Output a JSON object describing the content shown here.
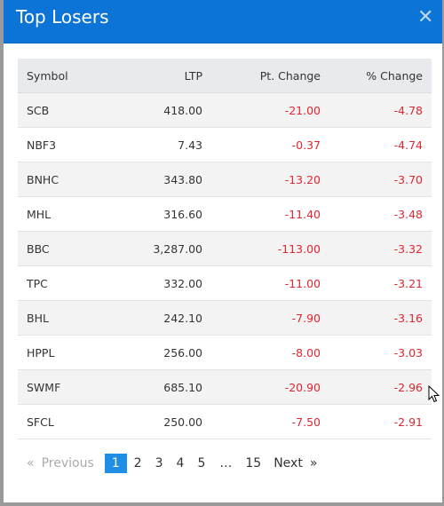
{
  "modal": {
    "title": "Top Losers",
    "close_icon": "close-icon"
  },
  "table": {
    "headers": [
      "Symbol",
      "LTP",
      "Pt. Change",
      "% Change"
    ],
    "rows": [
      {
        "symbol": "SCB",
        "ltp": "418.00",
        "pt_change": "-21.00",
        "pct_change": "-4.78"
      },
      {
        "symbol": "NBF3",
        "ltp": "7.43",
        "pt_change": "-0.37",
        "pct_change": "-4.74"
      },
      {
        "symbol": "BNHC",
        "ltp": "343.80",
        "pt_change": "-13.20",
        "pct_change": "-3.70"
      },
      {
        "symbol": "MHL",
        "ltp": "316.60",
        "pt_change": "-11.40",
        "pct_change": "-3.48"
      },
      {
        "symbol": "BBC",
        "ltp": "3,287.00",
        "pt_change": "-113.00",
        "pct_change": "-3.32"
      },
      {
        "symbol": "TPC",
        "ltp": "332.00",
        "pt_change": "-11.00",
        "pct_change": "-3.21"
      },
      {
        "symbol": "BHL",
        "ltp": "242.10",
        "pt_change": "-7.90",
        "pct_change": "-3.16"
      },
      {
        "symbol": "HPPL",
        "ltp": "256.00",
        "pt_change": "-8.00",
        "pct_change": "-3.03"
      },
      {
        "symbol": "SWMF",
        "ltp": "685.10",
        "pt_change": "-20.90",
        "pct_change": "-2.96"
      },
      {
        "symbol": "SFCL",
        "ltp": "250.00",
        "pt_change": "-7.50",
        "pct_change": "-2.91"
      }
    ]
  },
  "pagination": {
    "prev_arrow": "«",
    "prev_label": "Previous",
    "pages": [
      "1",
      "2",
      "3",
      "4",
      "5"
    ],
    "active_page": "1",
    "ellipsis": "…",
    "last_page": "15",
    "next_label": "Next",
    "next_arrow": "»"
  },
  "colors": {
    "header_bg": "#0b74d6",
    "negative": "#e0262f",
    "active_page": "#1f8ee6"
  }
}
